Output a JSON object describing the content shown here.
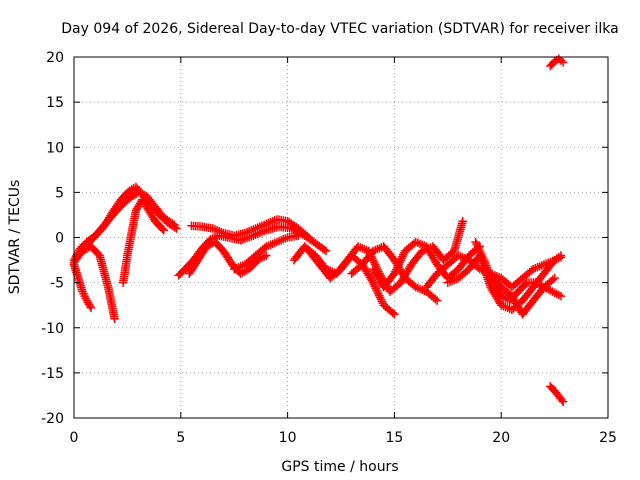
{
  "chart_data": {
    "type": "scatter",
    "title": "Day 094 of 2026, Sidereal Day-to-day VTEC variation (SDTVAR) for receiver ilka",
    "xlabel": "GPS time / hours",
    "ylabel": "SDTVAR / TECUs",
    "xlim": [
      0,
      25
    ],
    "ylim": [
      -20,
      20
    ],
    "xticks": [
      0,
      5,
      10,
      15,
      20,
      25
    ],
    "yticks": [
      -20,
      -15,
      -10,
      -5,
      0,
      5,
      10,
      15,
      20
    ],
    "xtick_labels": [
      "0",
      "5",
      "10",
      "15",
      "20",
      "25"
    ],
    "ytick_labels": [
      "-20",
      "-15",
      "-10",
      "-5",
      "0",
      "5",
      "10",
      "15",
      "20"
    ],
    "grid": true,
    "legend": "none",
    "marker": "+",
    "marker_color": "#ff0000",
    "series": [
      {
        "name": "arc-1",
        "x": [
          0.0,
          0.3,
          0.6,
          1.0,
          1.4,
          1.8,
          2.2,
          2.6,
          2.9,
          3.2,
          3.6,
          4.0,
          4.4,
          4.8
        ],
        "y": [
          -2.5,
          -1.2,
          -0.5,
          0.2,
          1.2,
          2.8,
          4.2,
          5.2,
          5.6,
          4.8,
          3.6,
          2.5,
          1.6,
          1.0
        ]
      },
      {
        "name": "arc-2",
        "x": [
          0.0,
          0.3,
          0.6,
          1.0,
          1.5,
          2.0,
          2.5,
          3.0,
          3.4,
          3.8,
          4.2,
          4.7
        ],
        "y": [
          -2.8,
          -1.8,
          -0.8,
          0.2,
          1.6,
          3.0,
          4.2,
          5.0,
          4.6,
          3.4,
          2.2,
          1.4
        ]
      },
      {
        "name": "arc-3",
        "x": [
          0.0,
          0.2,
          0.4,
          0.6,
          0.8
        ],
        "y": [
          -3.0,
          -4.5,
          -6.0,
          -7.0,
          -7.8
        ]
      },
      {
        "name": "arc-4",
        "x": [
          0.4,
          0.8,
          1.2,
          1.6,
          1.9
        ],
        "y": [
          -1.5,
          -1.0,
          -2.0,
          -5.5,
          -9.0
        ]
      },
      {
        "name": "arc-5",
        "x": [
          2.3,
          2.5,
          2.7,
          2.9,
          3.2,
          3.5,
          3.8,
          4.2
        ],
        "y": [
          -5.0,
          -2.0,
          0.5,
          3.0,
          4.2,
          3.0,
          1.8,
          0.8
        ]
      },
      {
        "name": "arc-6",
        "x": [
          4.9,
          5.2,
          5.6,
          6.0,
          6.4,
          6.8,
          7.2,
          7.8,
          8.4,
          9.0,
          9.6,
          10.2,
          10.8,
          11.4,
          11.8
        ],
        "y": [
          -4.2,
          -3.5,
          -2.5,
          -1.2,
          -0.2,
          0.2,
          0.0,
          -0.3,
          0.2,
          0.8,
          1.2,
          1.0,
          0.2,
          -0.8,
          -1.5
        ]
      },
      {
        "name": "arc-7",
        "x": [
          5.5,
          6.0,
          6.5,
          7.0,
          7.5,
          8.0,
          8.5,
          9.0,
          9.5,
          10.0,
          10.5,
          11.0
        ],
        "y": [
          1.3,
          1.2,
          1.0,
          0.5,
          0.2,
          0.5,
          1.0,
          1.5,
          2.0,
          1.8,
          1.0,
          0.0
        ]
      },
      {
        "name": "arc-8",
        "x": [
          5.4,
          5.8,
          6.2,
          6.6,
          7.0,
          7.4,
          7.8,
          8.2,
          8.6,
          9.0
        ],
        "y": [
          -4.0,
          -2.5,
          -1.0,
          -0.5,
          -1.5,
          -3.0,
          -4.0,
          -3.5,
          -2.5,
          -2.0
        ]
      },
      {
        "name": "arc-9",
        "x": [
          7.5,
          8.0,
          8.5,
          9.0,
          9.5,
          10.0,
          10.5
        ],
        "y": [
          -3.5,
          -3.0,
          -2.0,
          -1.0,
          -0.5,
          0.0,
          0.2
        ]
      },
      {
        "name": "arc-10",
        "x": [
          10.3,
          10.8,
          11.3,
          11.8,
          12.3,
          12.8,
          13.3,
          13.8,
          14.3,
          14.8,
          15.3,
          15.8,
          16.3,
          16.8,
          17.3,
          17.8,
          18.2
        ],
        "y": [
          -2.5,
          -1.0,
          -2.0,
          -3.5,
          -4.0,
          -2.5,
          -1.0,
          -1.5,
          -4.0,
          -6.0,
          -5.0,
          -3.0,
          -1.5,
          -1.0,
          -2.5,
          -1.5,
          1.8
        ]
      },
      {
        "name": "arc-11",
        "x": [
          11.0,
          11.5,
          12.0,
          12.5,
          13.0,
          13.5,
          14.0,
          14.5,
          15.0
        ],
        "y": [
          -1.5,
          -3.0,
          -4.5,
          -3.5,
          -2.0,
          -3.0,
          -5.0,
          -7.5,
          -8.5
        ]
      },
      {
        "name": "arc-12",
        "x": [
          13.0,
          13.5,
          14.0,
          14.5,
          15.0,
          15.5,
          16.0,
          16.5,
          17.0
        ],
        "y": [
          -4.0,
          -3.0,
          -1.5,
          -1.0,
          -2.5,
          -4.5,
          -5.5,
          -6.0,
          -7.0
        ]
      },
      {
        "name": "arc-13",
        "x": [
          14.0,
          14.5,
          15.0,
          15.5,
          16.0,
          16.5,
          17.0,
          17.5,
          18.0,
          18.5,
          19.0
        ],
        "y": [
          -3.5,
          -5.5,
          -4.0,
          -1.5,
          -0.5,
          -1.0,
          -3.0,
          -4.5,
          -3.5,
          -2.0,
          -1.0
        ]
      },
      {
        "name": "arc-14",
        "x": [
          16.5,
          17.0,
          17.5,
          18.0,
          18.5,
          19.0,
          19.5,
          20.0,
          20.5,
          21.0,
          21.5,
          22.0,
          22.5,
          22.8
        ],
        "y": [
          -5.5,
          -4.0,
          -3.0,
          -2.0,
          -2.5,
          -3.5,
          -4.0,
          -4.5,
          -5.5,
          -4.5,
          -3.5,
          -3.0,
          -2.5,
          -2.2
        ]
      },
      {
        "name": "arc-15",
        "x": [
          17.5,
          18.0,
          18.5,
          19.0,
          19.5,
          20.0,
          20.5,
          21.0,
          21.5,
          22.0,
          22.5,
          22.8
        ],
        "y": [
          -5.0,
          -4.5,
          -3.5,
          -2.0,
          -5.5,
          -7.5,
          -8.0,
          -7.0,
          -5.5,
          -4.0,
          -2.5,
          -2.0
        ]
      },
      {
        "name": "arc-16",
        "x": [
          18.8,
          19.2,
          19.6,
          20.0,
          20.4,
          20.8,
          21.2,
          21.6,
          22.0,
          22.4,
          22.8
        ],
        "y": [
          -0.5,
          -2.5,
          -5.0,
          -6.5,
          -7.0,
          -6.0,
          -5.0,
          -5.0,
          -5.5,
          -6.0,
          -6.5
        ]
      },
      {
        "name": "arc-17",
        "x": [
          19.5,
          20.0,
          20.5,
          21.0,
          21.5,
          22.0,
          22.5
        ],
        "y": [
          -4.0,
          -5.5,
          -6.5,
          -8.5,
          -7.0,
          -5.5,
          -4.5
        ]
      },
      {
        "name": "arc-18",
        "x": [
          22.3,
          22.5,
          22.7,
          22.9
        ],
        "y": [
          19.0,
          19.5,
          19.8,
          19.4
        ]
      },
      {
        "name": "arc-19",
        "x": [
          22.3,
          22.5,
          22.7,
          22.9
        ],
        "y": [
          -16.5,
          -17.0,
          -17.6,
          -18.2
        ]
      }
    ]
  }
}
